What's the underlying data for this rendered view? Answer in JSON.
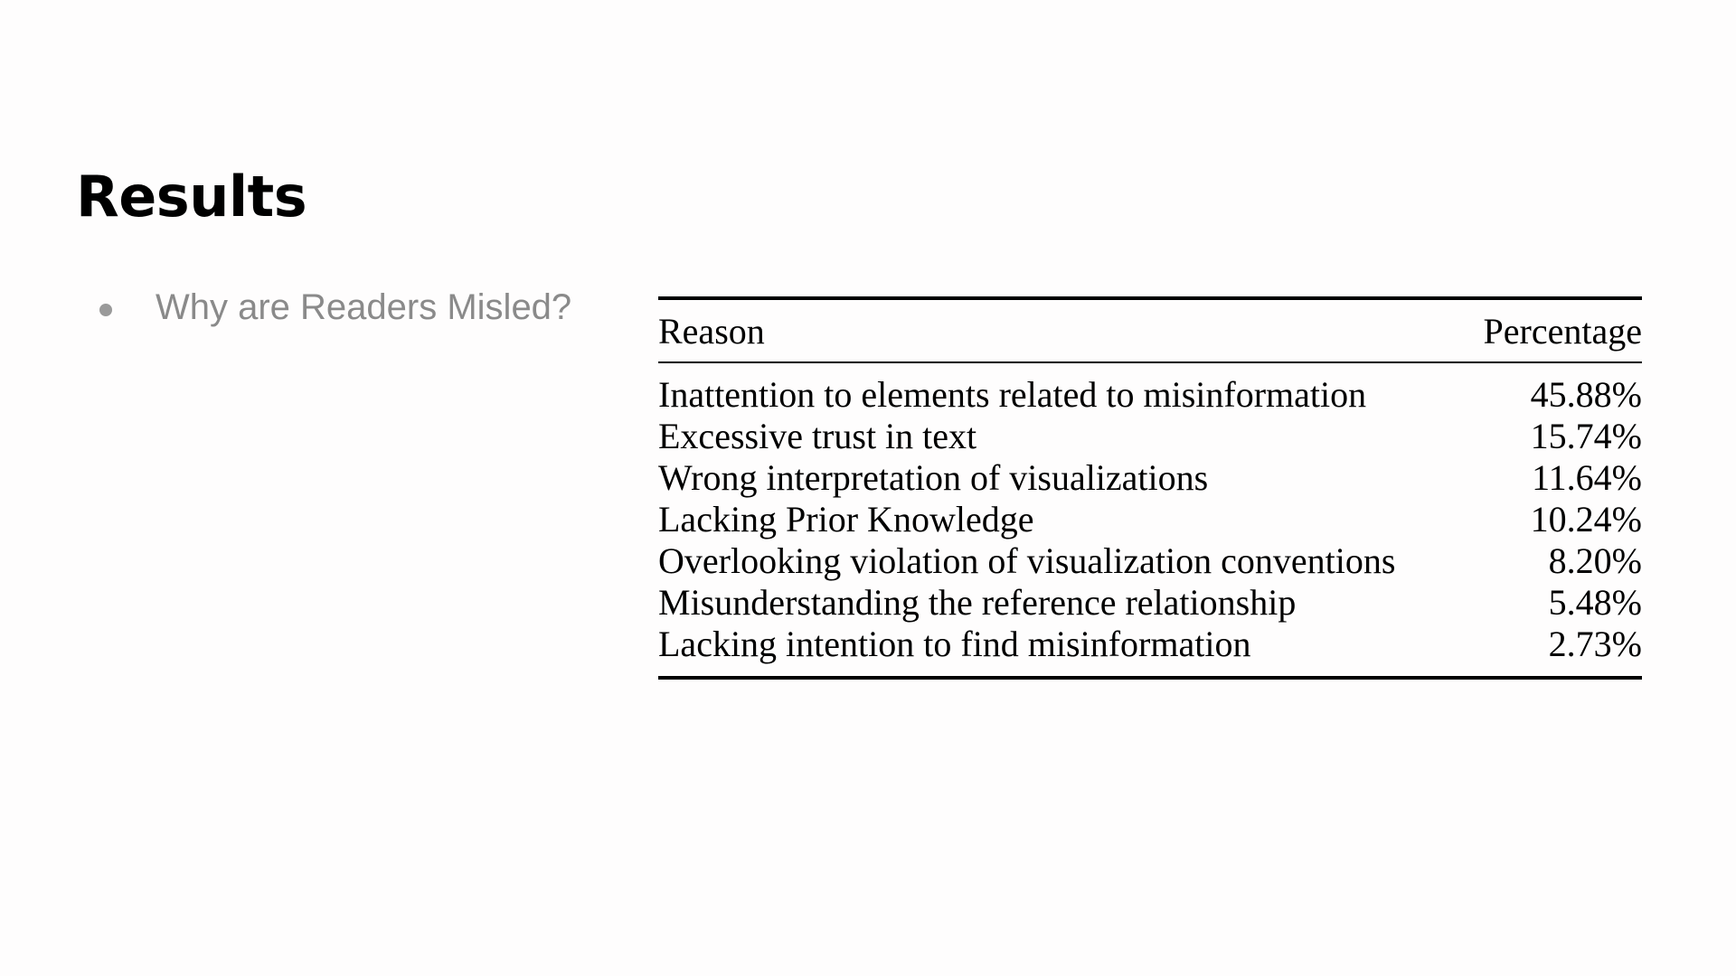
{
  "slide": {
    "title": "Results",
    "bullets": [
      {
        "text": "Why are Readers Misled?"
      }
    ]
  },
  "table": {
    "headers": {
      "reason": "Reason",
      "percentage": "Percentage"
    },
    "rows": [
      {
        "reason": "Inattention to elements related to misinformation",
        "percentage": "45.88%"
      },
      {
        "reason": "Excessive trust in text",
        "percentage": "15.74%"
      },
      {
        "reason": "Wrong interpretation of visualizations",
        "percentage": "11.64%"
      },
      {
        "reason": "Lacking Prior Knowledge",
        "percentage": "10.24%"
      },
      {
        "reason": "Overlooking violation of visualization conventions",
        "percentage": "8.20%"
      },
      {
        "reason": "Misunderstanding the reference relationship",
        "percentage": "5.48%"
      },
      {
        "reason": "Lacking intention to find misinformation",
        "percentage": "2.73%"
      }
    ]
  }
}
